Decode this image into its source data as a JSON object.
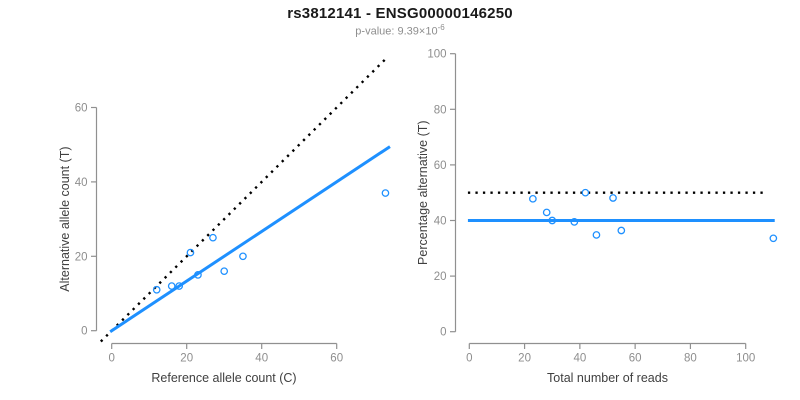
{
  "title": "rs3812141 - ENSG00000146250",
  "subtitle": {
    "text": "p-value: 9.39×10",
    "exponent": "-6"
  },
  "colors": {
    "accent": "#1E90FF",
    "line_dotted": "#000000",
    "axis": "#909090",
    "tick_label": "#8e8e8e",
    "axis_label": "#404040",
    "title": "#1a1a1a",
    "subtitle": "#8e8e8e"
  },
  "chart_data": [
    {
      "name": "allele-counts-scatter",
      "type": "scatter",
      "xlabel": "Reference allele count (C)",
      "ylabel": "Alternative allele count (T)",
      "xticks": [
        0,
        20,
        40,
        60
      ],
      "yticks": [
        0,
        20,
        40,
        60
      ],
      "xlim": [
        -3,
        75
      ],
      "ylim": [
        -3.5,
        73.3
      ],
      "points": [
        [
          12,
          11
        ],
        [
          16,
          12
        ],
        [
          18,
          12
        ],
        [
          21,
          21
        ],
        [
          23,
          15
        ],
        [
          27,
          25
        ],
        [
          30,
          16
        ],
        [
          35,
          20
        ],
        [
          73,
          37
        ]
      ],
      "lines": [
        {
          "name": "expected-ratio-line",
          "style": "dotted",
          "slope": 1,
          "intercept": 0,
          "x1": -2.9,
          "x2": 73.3
        },
        {
          "name": "fitted-ratio-line",
          "style": "solid",
          "slope": 0.667,
          "intercept": 0,
          "x1": -0.4,
          "x2": 74.2
        }
      ]
    },
    {
      "name": "percentage-alternative-scatter",
      "type": "scatter",
      "xlabel": "Total number of reads",
      "ylabel": "Percentage alternative (T)",
      "xticks": [
        0,
        20,
        40,
        60,
        80,
        100
      ],
      "yticks": [
        0,
        20,
        40,
        60,
        80,
        100
      ],
      "xlim": [
        -4.5,
        114
      ],
      "ylim": [
        -4.5,
        101.5
      ],
      "points": [
        [
          23,
          47.8
        ],
        [
          28,
          42.9
        ],
        [
          30,
          40
        ],
        [
          38,
          39.5
        ],
        [
          42,
          50
        ],
        [
          46,
          34.8
        ],
        [
          52,
          48.1
        ],
        [
          55,
          36.4
        ],
        [
          110,
          33.6
        ]
      ],
      "lines": [
        {
          "name": "expected-percentage-line",
          "style": "dotted",
          "slope": 0,
          "intercept": 50,
          "x1": -0.5,
          "x2": 108
        },
        {
          "name": "fitted-percentage-line",
          "style": "solid",
          "slope": 0,
          "intercept": 40,
          "x1": -0.5,
          "x2": 110.5
        }
      ]
    }
  ]
}
